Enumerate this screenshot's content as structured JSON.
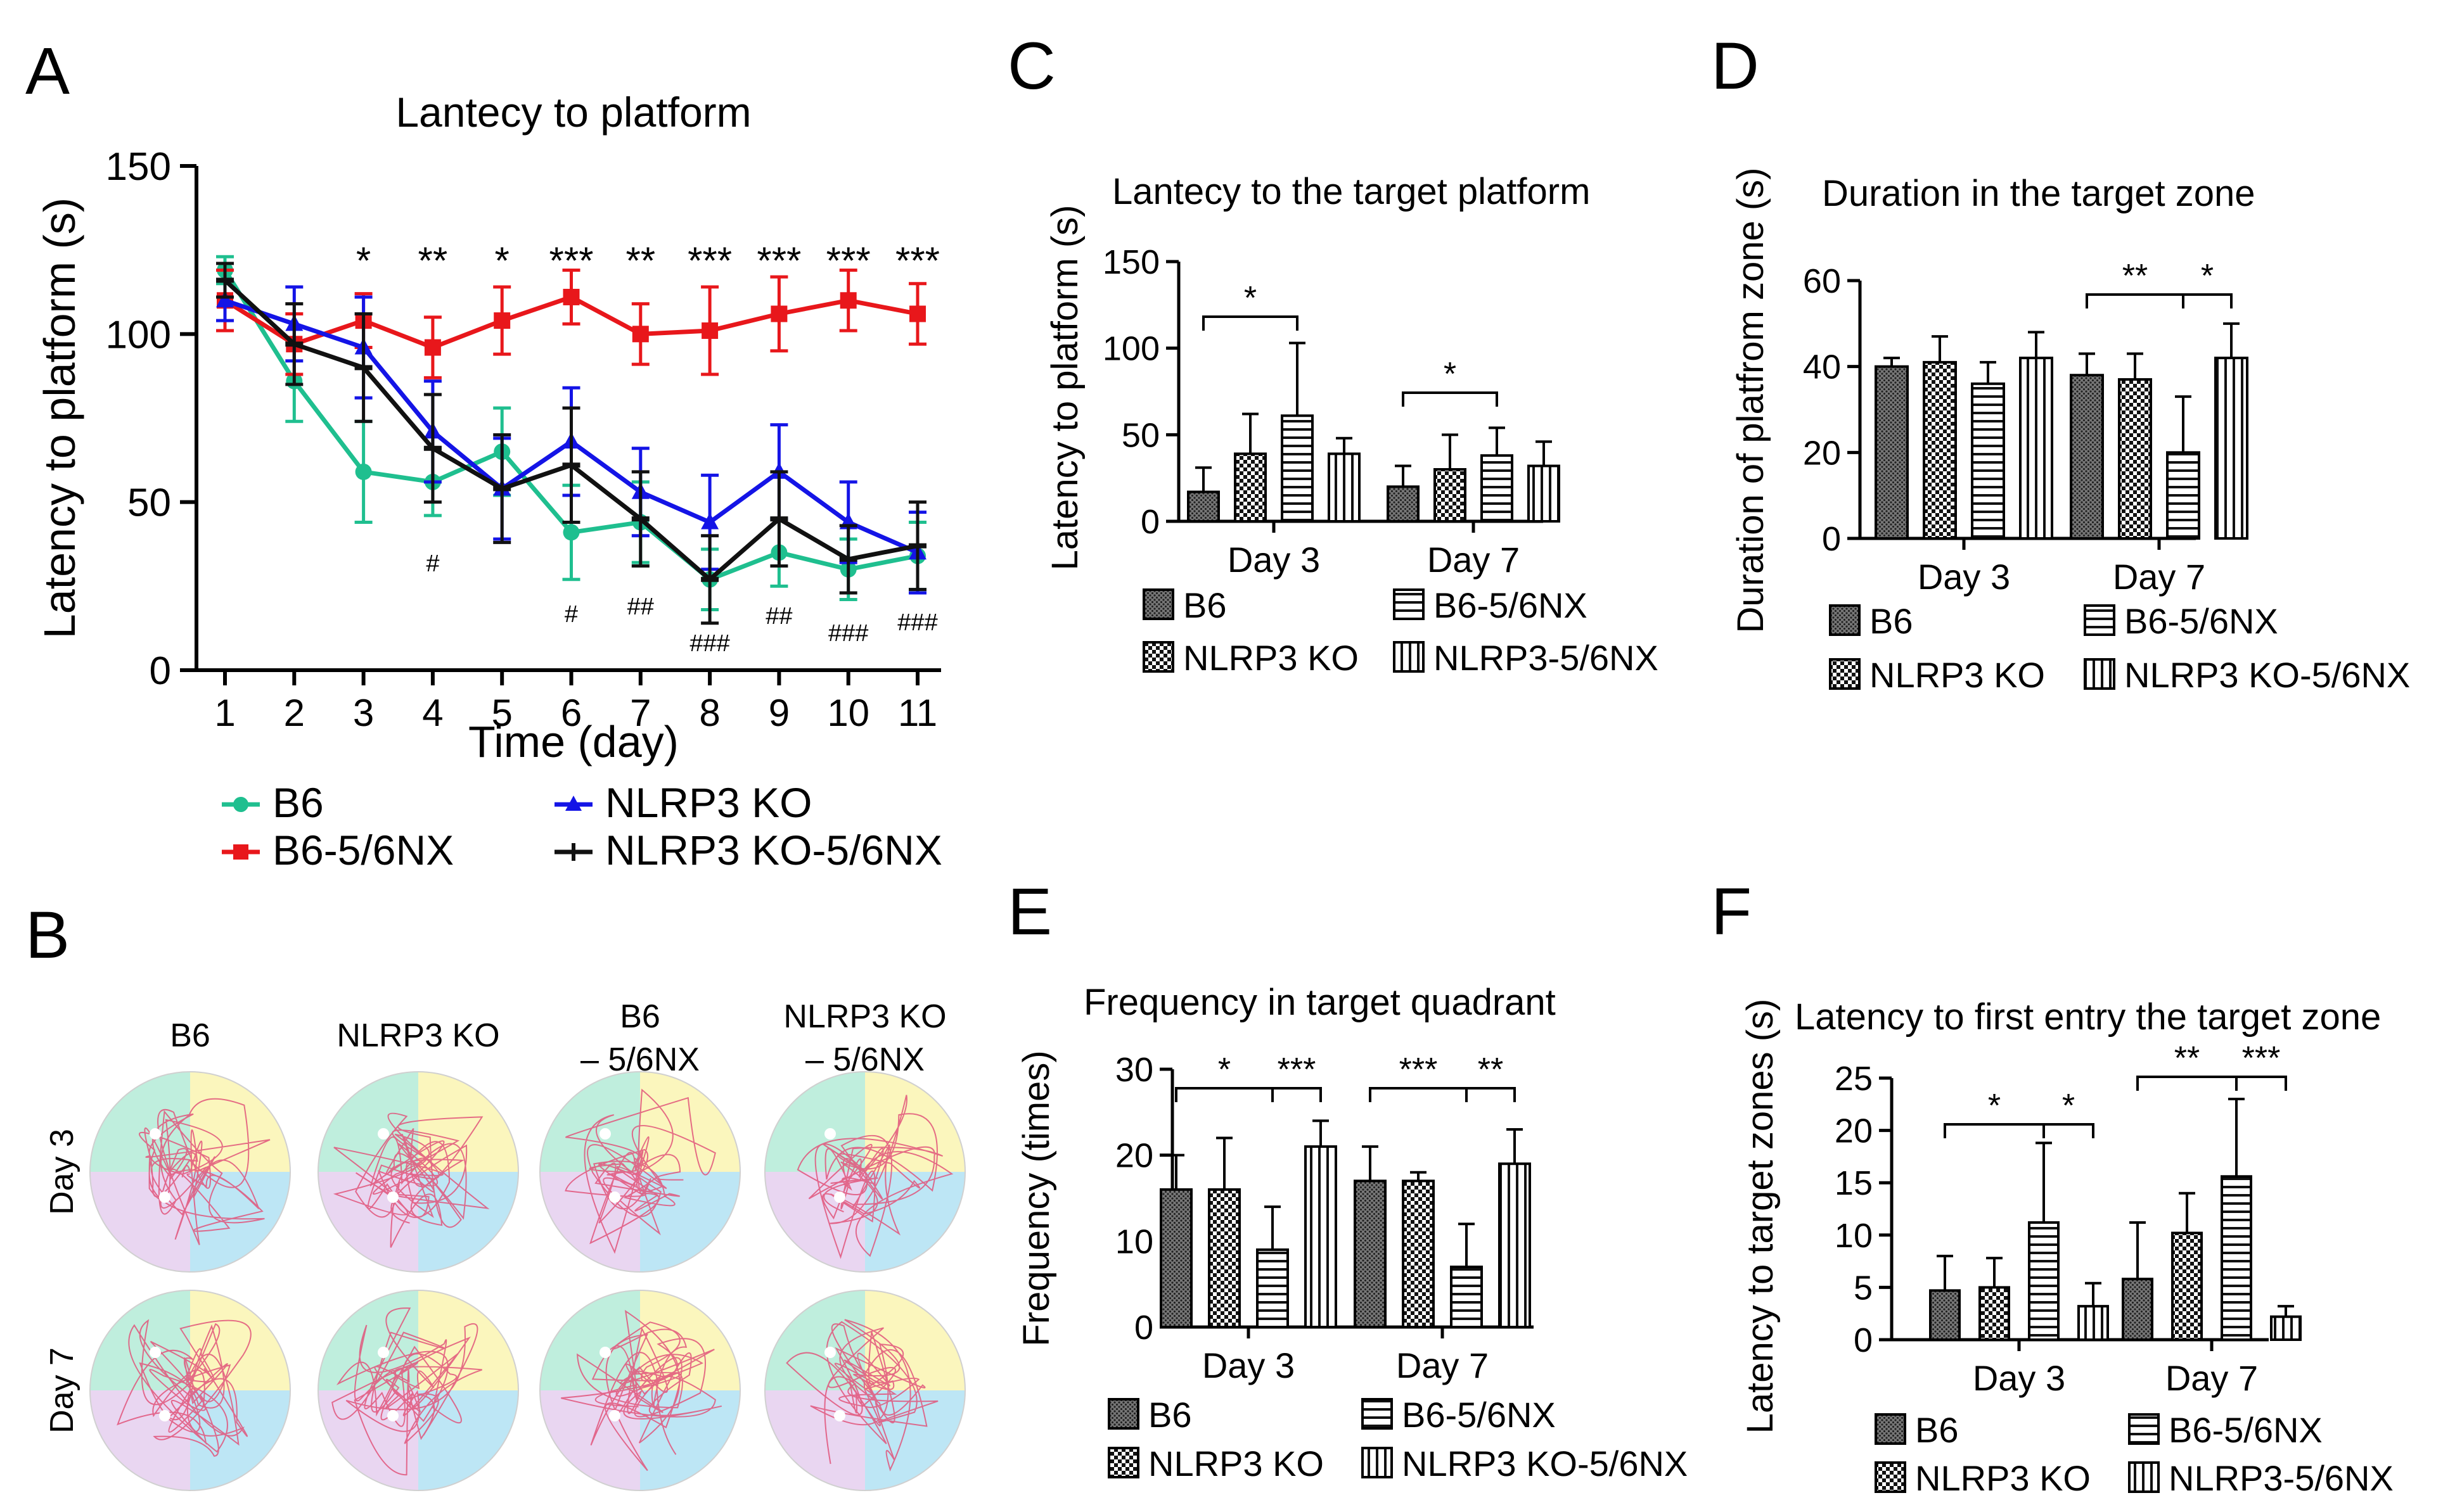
{
  "panel_letters": [
    "A",
    "B",
    "C",
    "D",
    "E",
    "F"
  ],
  "colors": {
    "b6": "#1fbf8f",
    "b6nx": "#e8171b",
    "ko": "#1414e6",
    "konx": "#111111",
    "path": "#e0537a",
    "q_green": "#bfeedd",
    "q_yellow": "#fbf6bd",
    "q_blue": "#bde6f5",
    "q_purple": "#e9d6f1"
  },
  "chart_data": [
    {
      "id": "A",
      "type": "line",
      "title": "Lantecy to platform",
      "xlabel": "Time (day)",
      "ylabel": "Latency to platform  (s)",
      "x": [
        1,
        2,
        3,
        4,
        5,
        6,
        7,
        8,
        9,
        10,
        11
      ],
      "xlim": [
        1,
        11
      ],
      "ylim": [
        0,
        150
      ],
      "yticks": [
        0,
        50,
        100,
        150
      ],
      "series": [
        {
          "name": "B6",
          "marker": "circle",
          "color": "#1fbf8f",
          "values": [
            119,
            86,
            59,
            56,
            65,
            41,
            44,
            27,
            35,
            30,
            34
          ],
          "errors": [
            4,
            12,
            15,
            10,
            13,
            14,
            12,
            9,
            10,
            9,
            10
          ]
        },
        {
          "name": "B6-5/6NX",
          "marker": "square",
          "color": "#e8171b",
          "values": [
            110,
            97,
            104,
            96,
            104,
            111,
            100,
            101,
            106,
            110,
            106
          ],
          "errors": [
            9,
            9,
            8,
            9,
            10,
            8,
            9,
            13,
            11,
            9,
            9
          ]
        },
        {
          "name": "NLRP3 KO",
          "marker": "triangle",
          "color": "#1414e6",
          "values": [
            110,
            103,
            96,
            71,
            54,
            68,
            53,
            44,
            59,
            44,
            35
          ],
          "errors": [
            6,
            11,
            15,
            15,
            15,
            16,
            13,
            14,
            14,
            12,
            12
          ]
        },
        {
          "name": "NLRP3 KO-5/6NX",
          "marker": "minus",
          "color": "#111111",
          "values": [
            116,
            97,
            90,
            66,
            54,
            61,
            45,
            27,
            45,
            33,
            37
          ],
          "errors": [
            5,
            12,
            16,
            16,
            16,
            17,
            14,
            13,
            14,
            10,
            13
          ]
        }
      ],
      "annotations_top": [
        {
          "x": 3,
          "text": "*"
        },
        {
          "x": 4,
          "text": "**"
        },
        {
          "x": 5,
          "text": "*"
        },
        {
          "x": 6,
          "text": "***"
        },
        {
          "x": 7,
          "text": "**"
        },
        {
          "x": 8,
          "text": "***"
        },
        {
          "x": 9,
          "text": "***"
        },
        {
          "x": 10,
          "text": "***"
        },
        {
          "x": 11,
          "text": "***"
        }
      ],
      "annotations_bottom": [
        {
          "x": 4,
          "text": "#"
        },
        {
          "x": 6,
          "text": "#"
        },
        {
          "x": 7,
          "text": "##"
        },
        {
          "x": 8,
          "text": "###"
        },
        {
          "x": 9,
          "text": "##"
        },
        {
          "x": 10,
          "text": "###"
        },
        {
          "x": 11,
          "text": "###"
        }
      ],
      "legend": [
        "B6",
        "B6-5/6NX",
        "NLRP3 KO",
        "NLRP3 KO-5/6NX"
      ]
    },
    {
      "id": "C",
      "type": "bar",
      "title": "Lantecy to the target platform",
      "ylabel": "Latency to platform  (s)",
      "categories": [
        "Day 3",
        "Day 7"
      ],
      "ylim": [
        0,
        150
      ],
      "yticks": [
        0,
        50,
        100,
        150
      ],
      "series": [
        {
          "name": "B6",
          "pattern": "dots",
          "values": [
            17,
            20
          ],
          "errors": [
            14,
            12
          ]
        },
        {
          "name": "NLRP3 KO",
          "pattern": "checker",
          "values": [
            39,
            30
          ],
          "errors": [
            23,
            20
          ]
        },
        {
          "name": "B6-5/6NX",
          "pattern": "hlines",
          "values": [
            61,
            38
          ],
          "errors": [
            42,
            16
          ]
        },
        {
          "name": "NLRP3-5/6NX",
          "pattern": "vlines",
          "values": [
            39,
            32
          ],
          "errors": [
            9,
            14
          ]
        }
      ],
      "significance": [
        {
          "category": 0,
          "from": 0,
          "to": 2,
          "text": "*"
        },
        {
          "category": 1,
          "from": 0,
          "to": 2,
          "text": "*"
        }
      ],
      "legend": [
        "B6",
        "B6-5/6NX",
        "NLRP3 KO",
        "NLRP3-5/6NX"
      ]
    },
    {
      "id": "D",
      "type": "bar",
      "title": "Duration in the target zone",
      "ylabel": "Duration of platfrom zone (s)",
      "categories": [
        "Day 3",
        "Day 7"
      ],
      "ylim": [
        0,
        60
      ],
      "yticks": [
        0,
        20,
        40,
        60
      ],
      "series": [
        {
          "name": "B6",
          "pattern": "dots",
          "values": [
            40,
            38
          ],
          "errors": [
            2,
            5
          ]
        },
        {
          "name": "NLRP3 KO",
          "pattern": "checker",
          "values": [
            41,
            37
          ],
          "errors": [
            6,
            6
          ]
        },
        {
          "name": "B6-5/6NX",
          "pattern": "hlines",
          "values": [
            36,
            20
          ],
          "errors": [
            5,
            13
          ]
        },
        {
          "name": "NLRP3 KO-5/6NX",
          "pattern": "vlines",
          "values": [
            42,
            42
          ],
          "errors": [
            6,
            8
          ]
        }
      ],
      "significance": [
        {
          "category": 1,
          "from": 0,
          "to": 2,
          "text": "**"
        },
        {
          "category": 1,
          "from": 2,
          "to": 3,
          "text": "*"
        }
      ],
      "legend": [
        "B6",
        "B6-5/6NX",
        "NLRP3 KO",
        "NLRP3 KO-5/6NX"
      ]
    },
    {
      "id": "E",
      "type": "bar",
      "title": "Frequency in target quadrant",
      "ylabel": "Frequency  (times)",
      "categories": [
        "Day 3",
        "Day 7"
      ],
      "ylim": [
        0,
        30
      ],
      "yticks": [
        0,
        10,
        20,
        30
      ],
      "series": [
        {
          "name": "B6",
          "pattern": "dots",
          "values": [
            16,
            17
          ],
          "errors": [
            4,
            4
          ]
        },
        {
          "name": "NLRP3 KO",
          "pattern": "checker",
          "values": [
            16,
            17
          ],
          "errors": [
            6,
            1
          ]
        },
        {
          "name": "B6-5/6NX",
          "pattern": "hlines",
          "values": [
            9,
            7
          ],
          "errors": [
            5,
            5
          ]
        },
        {
          "name": "NLRP3 KO-5/6NX",
          "pattern": "vlines",
          "values": [
            21,
            19
          ],
          "errors": [
            3,
            4
          ]
        }
      ],
      "significance": [
        {
          "category": 0,
          "from": 0,
          "to": 2,
          "text": "*"
        },
        {
          "category": 0,
          "from": 2,
          "to": 3,
          "text": "***"
        },
        {
          "category": 1,
          "from": 0,
          "to": 2,
          "text": "***"
        },
        {
          "category": 1,
          "from": 2,
          "to": 3,
          "text": "**"
        }
      ],
      "legend": [
        "B6",
        "B6-5/6NX",
        "NLRP3 KO",
        "NLRP3 KO-5/6NX"
      ]
    },
    {
      "id": "F",
      "type": "bar",
      "title": "Latency to first entry the target zone",
      "ylabel": "Latency to target zones  (s)",
      "categories": [
        "Day 3",
        "Day 7"
      ],
      "ylim": [
        0,
        25
      ],
      "yticks": [
        0,
        5,
        10,
        15,
        20,
        25
      ],
      "series": [
        {
          "name": "B6",
          "pattern": "dots",
          "values": [
            4.7,
            5.8
          ],
          "errors": [
            3.3,
            5.4
          ]
        },
        {
          "name": "NLRP3 KO",
          "pattern": "checker",
          "values": [
            5,
            10.2
          ],
          "errors": [
            2.8,
            3.8
          ]
        },
        {
          "name": "B6-5/6NX",
          "pattern": "hlines",
          "values": [
            11.2,
            15.6
          ],
          "errors": [
            7.6,
            7.4
          ]
        },
        {
          "name": "NLRP3-5/6NX",
          "pattern": "vlines",
          "values": [
            3.2,
            2.2
          ],
          "errors": [
            2.2,
            1
          ]
        }
      ],
      "significance": [
        {
          "category": 0,
          "from": 0,
          "to": 2,
          "text": "*"
        },
        {
          "category": 0,
          "from": 2,
          "to": 3,
          "text": "*"
        },
        {
          "category": 1,
          "from": 0,
          "to": 2,
          "text": "**"
        },
        {
          "category": 1,
          "from": 2,
          "to": 3,
          "text": "***"
        }
      ],
      "legend": [
        "B6",
        "B6-5/6NX",
        "NLRP3 KO",
        "NLRP3-5/6NX"
      ]
    }
  ],
  "panel_b": {
    "columns": [
      "B6",
      "NLRP3 KO",
      [
        "B6",
        "– 5/6NX"
      ],
      [
        "NLRP3 KO",
        "– 5/6NX"
      ]
    ],
    "rows": [
      "Day 3",
      "Day 7"
    ]
  }
}
